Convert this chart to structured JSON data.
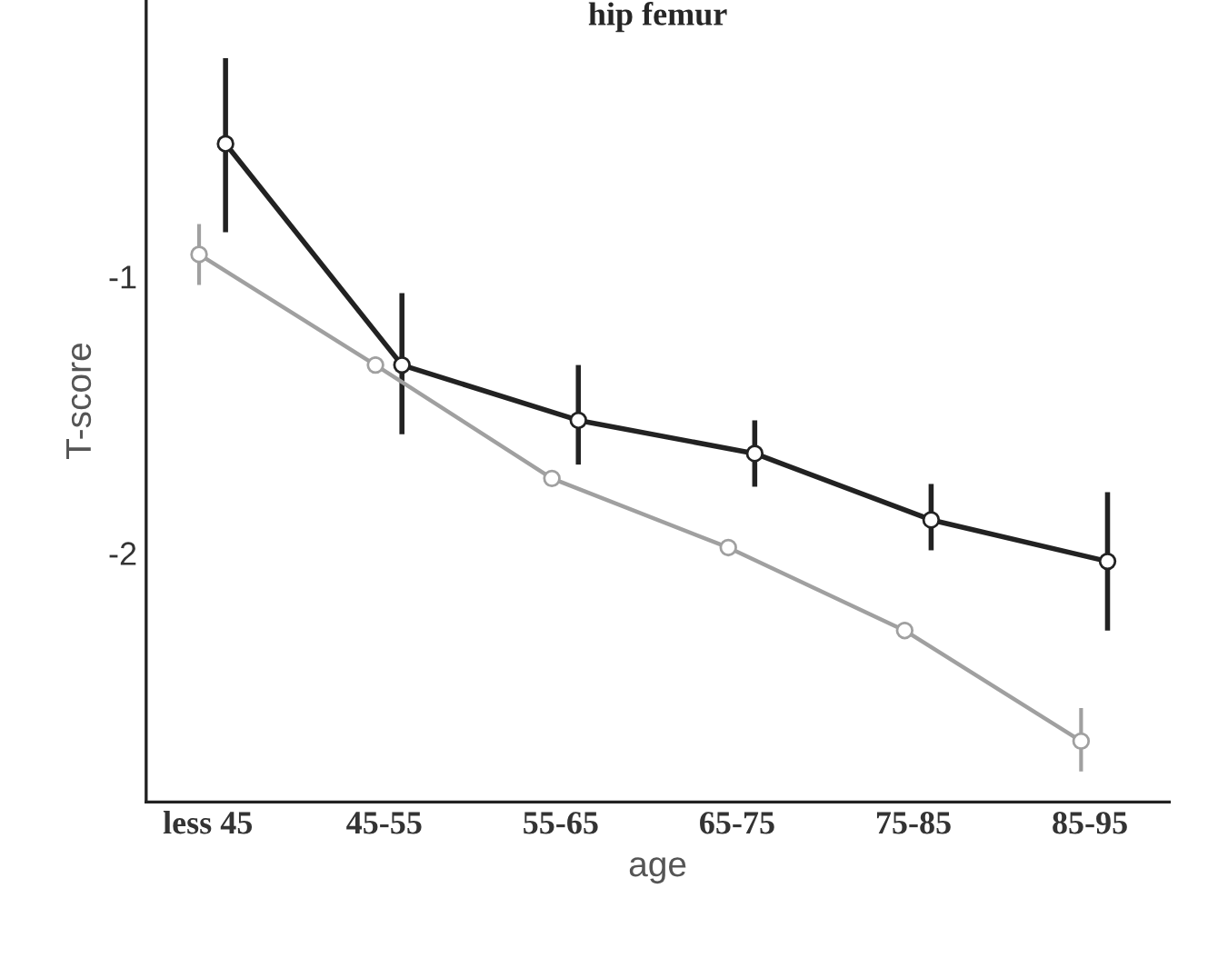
{
  "chart_data": {
    "type": "line",
    "title": "hip femur",
    "xlabel": "age",
    "ylabel": "T-score",
    "categories": [
      "less 45",
      "45-55",
      "55-65",
      "65-75",
      "75-85",
      "85-95"
    ],
    "series": [
      {
        "color": "#222222",
        "values": [
          -0.52,
          -1.32,
          -1.52,
          -1.64,
          -1.88,
          -2.03
        ],
        "errors": [
          [
            -0.84,
            -0.21
          ],
          [
            -1.57,
            -1.06
          ],
          [
            -1.68,
            -1.32
          ],
          [
            -1.76,
            -1.52
          ],
          [
            -1.99,
            -1.75
          ],
          [
            -2.28,
            -1.78
          ]
        ]
      },
      {
        "color": "#a0a0a0",
        "values": [
          -0.92,
          -1.32,
          -1.73,
          -1.98,
          -2.28,
          -2.68
        ],
        "errors": [
          [
            -1.03,
            -0.81
          ],
          [
            -1.35,
            -1.29
          ],
          [
            -1.75,
            -1.71
          ],
          [
            -2.0,
            -1.96
          ],
          [
            -2.31,
            -2.25
          ],
          [
            -2.79,
            -2.56
          ]
        ]
      }
    ],
    "ylim": [
      -2.9,
      0.0
    ],
    "yticks": [
      -1,
      -2
    ],
    "marker": "circle",
    "grid": false,
    "legend": false
  }
}
